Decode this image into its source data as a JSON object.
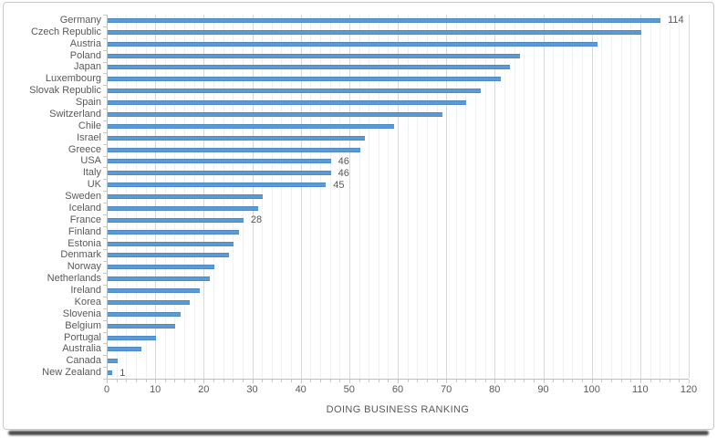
{
  "window": {
    "kind": "framed chart screenshot",
    "title": ""
  },
  "colors": {
    "background": "#FFFFFF",
    "bar_fill": "#5B9BD5",
    "bar_edge": "#4E88C7",
    "text": "#595959",
    "gridline_major": "#D9D9D9",
    "gridline_minor": "#F0F1F3",
    "axis_line": "#BFBFBF",
    "tick_mark": "#C9C9C9",
    "frame_border": "#C9C9C9",
    "frame_shadow": "#4A4A4A"
  },
  "chart_data": {
    "type": "bar",
    "orientation": "horizontal",
    "title": "",
    "xlabel": "DOING BUSINESS RANKING",
    "ylabel": "",
    "xlim": [
      0,
      120
    ],
    "x_tick_step": 10,
    "x_minor_step": 2,
    "x_tick_labels": [
      "0",
      "10",
      "20",
      "30",
      "40",
      "50",
      "60",
      "70",
      "80",
      "90",
      "100",
      "110",
      "120"
    ],
    "grid": "vertical, major and minor, on",
    "legend": "none",
    "series": [
      {
        "category": "Germany",
        "value": 114,
        "data_label": "114"
      },
      {
        "category": "Czech Republic",
        "value": 110,
        "data_label": ""
      },
      {
        "category": "Austria",
        "value": 101,
        "data_label": ""
      },
      {
        "category": "Poland",
        "value": 85,
        "data_label": ""
      },
      {
        "category": "Japan",
        "value": 83,
        "data_label": ""
      },
      {
        "category": "Luxembourg",
        "value": 81,
        "data_label": ""
      },
      {
        "category": "Slovak Republic",
        "value": 77,
        "data_label": ""
      },
      {
        "category": "Spain",
        "value": 74,
        "data_label": ""
      },
      {
        "category": "Switzerland",
        "value": 69,
        "data_label": ""
      },
      {
        "category": "Chile",
        "value": 59,
        "data_label": ""
      },
      {
        "category": "Israel",
        "value": 53,
        "data_label": ""
      },
      {
        "category": "Greece",
        "value": 52,
        "data_label": ""
      },
      {
        "category": "USA",
        "value": 46,
        "data_label": "46"
      },
      {
        "category": "Italy",
        "value": 46,
        "data_label": "46"
      },
      {
        "category": "UK",
        "value": 45,
        "data_label": "45"
      },
      {
        "category": "Sweden",
        "value": 32,
        "data_label": ""
      },
      {
        "category": "Iceland",
        "value": 31,
        "data_label": ""
      },
      {
        "category": "France",
        "value": 28,
        "data_label": "28"
      },
      {
        "category": "Finland",
        "value": 27,
        "data_label": ""
      },
      {
        "category": "Estonia",
        "value": 26,
        "data_label": ""
      },
      {
        "category": "Denmark",
        "value": 25,
        "data_label": ""
      },
      {
        "category": "Norway",
        "value": 22,
        "data_label": ""
      },
      {
        "category": "Netherlands",
        "value": 21,
        "data_label": ""
      },
      {
        "category": "Ireland",
        "value": 19,
        "data_label": ""
      },
      {
        "category": "Korea",
        "value": 17,
        "data_label": ""
      },
      {
        "category": "Slovenia",
        "value": 15,
        "data_label": ""
      },
      {
        "category": "Belgium",
        "value": 14,
        "data_label": ""
      },
      {
        "category": "Portugal",
        "value": 10,
        "data_label": ""
      },
      {
        "category": "Australia",
        "value": 7,
        "data_label": ""
      },
      {
        "category": "Canada",
        "value": 2,
        "data_label": ""
      },
      {
        "category": "New Zealand",
        "value": 1,
        "data_label": "1"
      }
    ]
  }
}
